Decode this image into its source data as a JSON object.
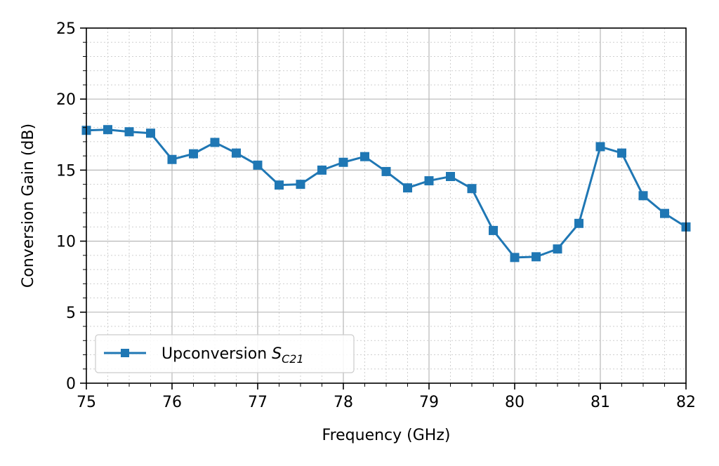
{
  "chart_data": {
    "type": "line",
    "title": "",
    "xlabel": "Frequency (GHz)",
    "ylabel": "Conversion Gain (dB)",
    "xlim": [
      75,
      82
    ],
    "ylim": [
      0,
      25
    ],
    "x_ticks": [
      75,
      76,
      77,
      78,
      79,
      80,
      81,
      82
    ],
    "y_ticks": [
      0,
      5,
      10,
      15,
      20,
      25
    ],
    "x_minor_step": 0.25,
    "y_minor_step": 1,
    "grid": true,
    "legend_position": "lower-left",
    "series": [
      {
        "name": "Upconversion S",
        "name_subscript": "C21",
        "color": "#1f77b4",
        "marker": "square",
        "x": [
          75,
          75.25,
          75.5,
          75.75,
          76,
          76.25,
          76.5,
          76.75,
          77,
          77.25,
          77.5,
          77.75,
          78,
          78.25,
          78.5,
          78.75,
          79,
          79.25,
          79.5,
          79.75,
          80,
          80.25,
          80.5,
          80.75,
          81,
          81.25,
          81.5,
          81.75,
          82
        ],
        "y": [
          17.8,
          17.85,
          17.7,
          17.6,
          15.75,
          16.15,
          16.95,
          16.2,
          15.35,
          13.95,
          14.0,
          15.0,
          15.55,
          15.95,
          14.9,
          13.75,
          14.25,
          14.55,
          13.7,
          10.75,
          8.85,
          8.9,
          9.45,
          11.25,
          16.65,
          16.2,
          13.2,
          11.95,
          11.0
        ]
      }
    ]
  }
}
